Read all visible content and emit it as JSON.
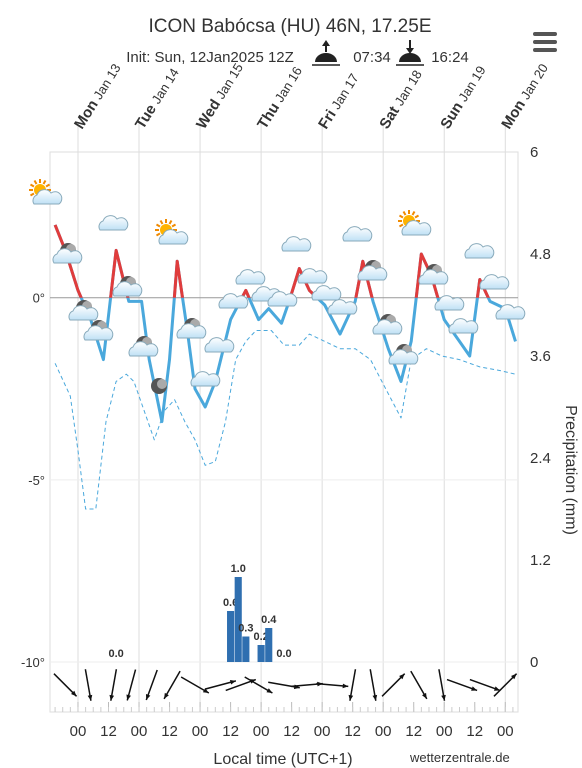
{
  "chart_data": {
    "type": "meteogram",
    "title": "ICON Babócsa (HU) 46N, 17.25E",
    "subtitle": "Init: Sun, 12Jan2025 12Z",
    "sunrise": "07:34",
    "sunset": "16:24",
    "xlabel": "Local time (UTC+1)",
    "y2label": "Precipitation (mm)",
    "credit": "wetterzentrale.de",
    "xlim": [
      -11,
      173
    ],
    "xticks": [
      {
        "value": 0,
        "label": "00"
      },
      {
        "value": 12,
        "label": "12"
      },
      {
        "value": 24,
        "label": "00"
      },
      {
        "value": 36,
        "label": "12"
      },
      {
        "value": 48,
        "label": "00"
      },
      {
        "value": 60,
        "label": "12"
      },
      {
        "value": 72,
        "label": "00"
      },
      {
        "value": 84,
        "label": "12"
      },
      {
        "value": 96,
        "label": "00"
      },
      {
        "value": 108,
        "label": "12"
      },
      {
        "value": 120,
        "label": "00"
      },
      {
        "value": 132,
        "label": "12"
      },
      {
        "value": 144,
        "label": "00"
      },
      {
        "value": 156,
        "label": "12"
      },
      {
        "value": 168,
        "label": "00"
      }
    ],
    "day_ticks": [
      {
        "value": 0,
        "day": "Mon",
        "date": "Jan 13"
      },
      {
        "value": 24,
        "day": "Tue",
        "date": "Jan 14"
      },
      {
        "value": 48,
        "day": "Wed",
        "date": "Jan 15"
      },
      {
        "value": 72,
        "day": "Thu",
        "date": "Jan 16"
      },
      {
        "value": 96,
        "day": "Fri",
        "date": "Jan 17"
      },
      {
        "value": 120,
        "day": "Sat",
        "date": "Jan 18"
      },
      {
        "value": 144,
        "day": "Sun",
        "date": "Jan 19"
      },
      {
        "value": 168,
        "day": "Mon",
        "date": "Jan 20"
      }
    ],
    "ylim": [
      -10,
      4
    ],
    "yticks": [
      {
        "value": -10,
        "label": "-10°"
      },
      {
        "value": -5,
        "label": "-5°"
      },
      {
        "value": 0,
        "label": "0°"
      }
    ],
    "y2lim": [
      0,
      6
    ],
    "y2ticks": [
      0,
      1.2,
      2.4,
      3.6,
      4.8,
      6
    ],
    "series": [
      {
        "color": "#4aa8dc",
        "warm_color": "#e03c3c",
        "style": "solid",
        "x": [
          -9,
          -5,
          0,
          5,
          10,
          15,
          20,
          25,
          28,
          33,
          36,
          39,
          43,
          46,
          50,
          54,
          60,
          66,
          71,
          75,
          80,
          83,
          87,
          91,
          97,
          103,
          109,
          112,
          116,
          122,
          127,
          131,
          135,
          139,
          144,
          150,
          154,
          158,
          162,
          168,
          172
        ],
        "values": [
          2.0,
          1.3,
          0.2,
          -0.6,
          -1.7,
          1.3,
          -0.1,
          -0.1,
          -1.7,
          -3.4,
          -1.7,
          1.0,
          -0.9,
          -2.5,
          -3.0,
          -2.3,
          -0.6,
          0.2,
          -0.6,
          -0.3,
          -0.7,
          -0.1,
          0.8,
          0.2,
          -0.2,
          -1.0,
          -0.1,
          1.0,
          -0.1,
          -1.4,
          -2.3,
          -1.2,
          1.2,
          0.6,
          -0.6,
          -1.2,
          -1.6,
          0.5,
          -0.1,
          -0.3,
          -1.2
        ]
      },
      {
        "color": "#4aa8dc",
        "style": "dashed",
        "x": [
          -9,
          -3,
          0,
          3,
          7,
          11,
          15,
          19,
          22,
          26,
          30,
          34,
          38,
          42,
          46,
          50,
          54,
          58,
          62,
          66,
          70,
          76,
          81,
          87,
          91,
          97,
          103,
          109,
          115,
          121,
          127,
          131,
          137,
          143,
          150,
          158,
          166,
          172
        ],
        "values": [
          -1.8,
          -2.7,
          -4.2,
          -5.8,
          -5.8,
          -3.4,
          -2.3,
          -2.1,
          -2.3,
          -3.1,
          -3.9,
          -3.1,
          -2.8,
          -3.4,
          -3.9,
          -4.6,
          -4.5,
          -3.4,
          -1.7,
          -1.2,
          -0.9,
          -0.9,
          -1.3,
          -1.3,
          -1.0,
          -1.2,
          -1.4,
          -1.4,
          -1.7,
          -2.5,
          -3.3,
          -1.7,
          -1.4,
          -1.6,
          -1.7,
          -1.9,
          -2.0,
          -2.1
        ]
      }
    ],
    "precipitation": {
      "axis": "y2",
      "color": "#2f6fb0",
      "x": [
        15,
        60,
        63,
        66,
        72,
        75,
        81
      ],
      "values": [
        0,
        0.6,
        1.0,
        0.3,
        0.2,
        0.4,
        0
      ],
      "value_labels": [
        "0.0",
        "0.6",
        "1.0",
        "0.3",
        "0.2",
        "0.4",
        "0.0"
      ]
    },
    "wind": {
      "x": [
        -5,
        4,
        14,
        21,
        29,
        37,
        46,
        56,
        64,
        71,
        81,
        90,
        100,
        108,
        116,
        124,
        134,
        143,
        151,
        160,
        168
      ],
      "direction": [
        315,
        350,
        10,
        15,
        20,
        30,
        300,
        255,
        250,
        300,
        280,
        265,
        275,
        10,
        350,
        225,
        330,
        350,
        290,
        290,
        225
      ]
    }
  }
}
